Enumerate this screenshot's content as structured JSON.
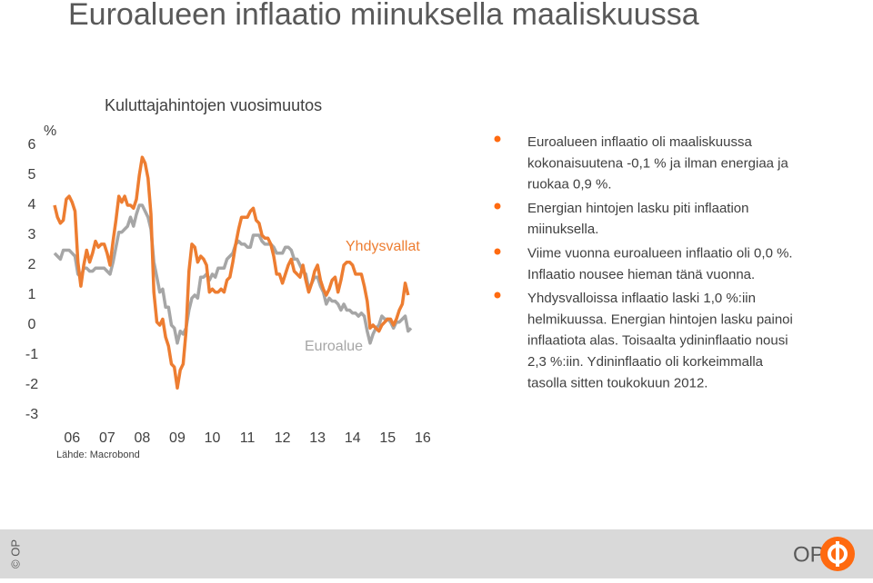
{
  "slide": {
    "title": "Euroalueen inflaatio miinuksella maaliskuussa",
    "bullets": [
      [
        "Euroalueen inflaatio oli maaliskuussa",
        "kokonaisuutena -0,1 % ja ilman energiaa ja",
        "ruokaa 0,9 %."
      ],
      [
        "Energian hintojen lasku piti inflaation",
        "miinuksella."
      ],
      [
        "Viime vuonna euroalueen inflaatio oli 0,0 %.",
        "Inflaatio nousee hieman tänä vuonna."
      ],
      [
        "Yhdysvalloissa inflaatio laski 1,0 %:iin",
        "helmikuussa. Energian hintojen lasku painoi",
        "inflaatiota alas. Toisaalta ydininflaatio nousi",
        "2,3 %:iin. Ydininflaatio oli korkeimmalla",
        "tasolla sitten toukokuun 2012."
      ]
    ],
    "copyright": "© OP",
    "logo": "OP"
  },
  "chart_data": {
    "type": "line",
    "title": "Kuluttajahintojen vuosimuutos",
    "y_label": "%",
    "source": "Lähde: Macrobond",
    "x": [
      0,
      1,
      2,
      3,
      4,
      5,
      6,
      7,
      8,
      9,
      10,
      11,
      12,
      13,
      14,
      15,
      16,
      17,
      18,
      19,
      20,
      21,
      22,
      23,
      24,
      25,
      26,
      27,
      28,
      29,
      30,
      31,
      32,
      33,
      34,
      35,
      36,
      37,
      38,
      39,
      40,
      41,
      42,
      43,
      44,
      45,
      46,
      47,
      48,
      49,
      50,
      51,
      52,
      53,
      54,
      55,
      56,
      57,
      58,
      59,
      60,
      61,
      62,
      63,
      64,
      65,
      66,
      67,
      68,
      69,
      70,
      71,
      72,
      73,
      74,
      75,
      76,
      77,
      78,
      79,
      80,
      81,
      82,
      83,
      84,
      85,
      86,
      87,
      88,
      89,
      90,
      91,
      92,
      93,
      94,
      95,
      96,
      97,
      98,
      99,
      100,
      101,
      102,
      103,
      104,
      105,
      106,
      107,
      108,
      109,
      110,
      111,
      112,
      113,
      114,
      115,
      116,
      117,
      118,
      119,
      120,
      121,
      122
    ],
    "xlim": [
      0,
      122
    ],
    "xticks": [
      {
        "value": 6,
        "label": "06"
      },
      {
        "value": 18,
        "label": "07"
      },
      {
        "value": 30,
        "label": "08"
      },
      {
        "value": 42,
        "label": "09"
      },
      {
        "value": 54,
        "label": "10"
      },
      {
        "value": 66,
        "label": "11"
      },
      {
        "value": 78,
        "label": "12"
      },
      {
        "value": 90,
        "label": "13"
      },
      {
        "value": 102,
        "label": "14"
      },
      {
        "value": 114,
        "label": "15"
      },
      {
        "value": 126,
        "label": "16"
      }
    ],
    "ylim": [
      -3,
      6
    ],
    "yticks": [
      -3,
      -2,
      -1,
      0,
      1,
      2,
      3,
      4,
      5,
      6
    ],
    "series": [
      {
        "name": "Euroalue",
        "color": "#a6a6a6",
        "values": [
          2.4,
          2.3,
          2.2,
          2.5,
          2.5,
          2.5,
          2.4,
          2.3,
          1.7,
          1.6,
          1.9,
          1.9,
          1.8,
          1.8,
          1.9,
          1.9,
          1.9,
          1.9,
          1.8,
          1.7,
          2.1,
          2.6,
          3.1,
          3.1,
          3.2,
          3.3,
          3.6,
          3.3,
          3.7,
          4.0,
          4.0,
          3.8,
          3.6,
          3.2,
          2.1,
          1.6,
          1.1,
          1.2,
          0.6,
          0.6,
          0.0,
          -0.1,
          -0.6,
          -0.2,
          -0.3,
          -0.1,
          0.5,
          0.9,
          1.0,
          0.9,
          1.6,
          1.6,
          1.7,
          1.5,
          1.7,
          1.6,
          1.9,
          1.9,
          1.9,
          2.2,
          2.3,
          2.4,
          2.7,
          2.8,
          2.7,
          2.7,
          2.6,
          2.6,
          3.0,
          3.0,
          3.0,
          2.8,
          2.7,
          2.7,
          2.7,
          2.6,
          2.4,
          2.4,
          2.4,
          2.6,
          2.6,
          2.5,
          2.2,
          2.2,
          2.0,
          1.8,
          1.7,
          1.2,
          1.4,
          1.6,
          1.6,
          1.3,
          1.1,
          0.7,
          0.9,
          0.8,
          0.8,
          0.7,
          0.5,
          0.7,
          0.5,
          0.5,
          0.4,
          0.4,
          0.3,
          0.4,
          0.3,
          -0.2,
          -0.6,
          -0.3,
          -0.1,
          0.0,
          0.3,
          0.2,
          0.2,
          0.1,
          -0.1,
          0.1,
          0.1,
          0.2,
          0.3,
          -0.2,
          -0.1
        ]
      },
      {
        "name": "Yhdysvallat",
        "color": "#ed7d31",
        "values": [
          4.0,
          3.6,
          3.4,
          3.5,
          4.2,
          4.3,
          4.1,
          3.8,
          2.1,
          1.3,
          2.0,
          2.5,
          2.1,
          2.4,
          2.8,
          2.6,
          2.7,
          2.7,
          2.4,
          2.0,
          2.8,
          3.5,
          4.3,
          4.1,
          4.3,
          4.0,
          4.0,
          3.9,
          4.2,
          5.0,
          5.6,
          5.4,
          4.9,
          3.7,
          1.1,
          0.1,
          0.0,
          0.2,
          -0.4,
          -0.7,
          -1.3,
          -1.4,
          -2.1,
          -1.5,
          -1.3,
          -0.2,
          1.8,
          2.7,
          2.6,
          2.1,
          2.3,
          2.2,
          2.0,
          1.1,
          1.2,
          1.1,
          1.1,
          1.2,
          1.1,
          1.5,
          1.6,
          2.1,
          2.7,
          3.2,
          3.6,
          3.6,
          3.6,
          3.8,
          3.9,
          3.5,
          3.4,
          3.0,
          2.9,
          2.9,
          2.7,
          2.3,
          1.7,
          1.7,
          1.4,
          1.7,
          2.0,
          2.2,
          1.8,
          1.7,
          1.6,
          2.0,
          1.5,
          1.1,
          1.4,
          1.8,
          2.0,
          1.5,
          1.2,
          1.0,
          1.2,
          1.5,
          1.6,
          1.1,
          1.5,
          2.0,
          2.1,
          2.1,
          2.0,
          1.7,
          1.7,
          1.7,
          1.3,
          0.8,
          -0.1,
          0.0,
          -0.1,
          -0.2,
          0.0,
          0.1,
          0.2,
          0.2,
          0.0,
          0.2,
          0.5,
          0.7,
          1.4,
          1.0,
          null
        ]
      }
    ]
  }
}
